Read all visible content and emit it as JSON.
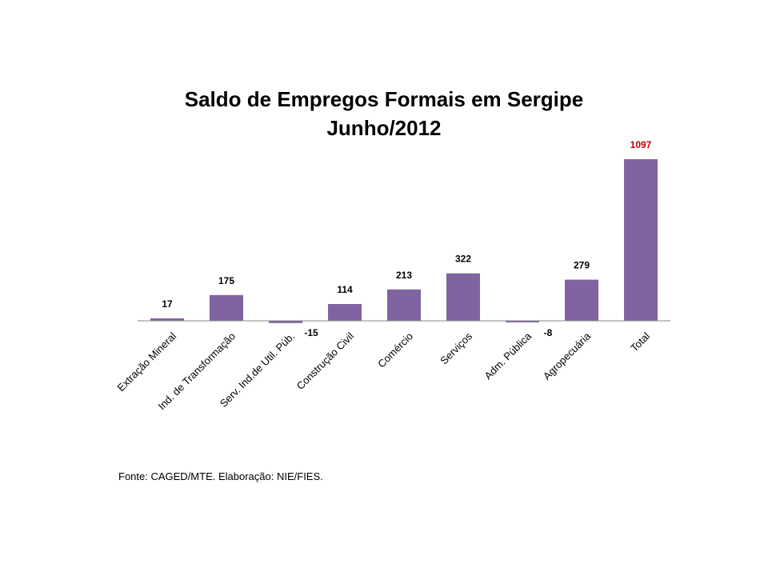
{
  "chart_data": {
    "type": "bar",
    "title": "Saldo de Empregos Formais em Sergipe",
    "subtitle": "Junho/2012",
    "categories": [
      "Extração Mineral",
      "Ind. de Transformação",
      "Serv. Ind.de Util. Púb.",
      "Construção Civil",
      "Comércio",
      "Serviços",
      "Adm. Pública",
      "Agropecuária",
      "Total"
    ],
    "values": [
      17,
      175,
      -15,
      114,
      213,
      322,
      -8,
      279,
      1097
    ],
    "data_labels": [
      "17",
      "175",
      "-15",
      "114",
      "213",
      "322",
      "-8",
      "279",
      "1097"
    ],
    "highlight_index": 8,
    "ylim": [
      -15,
      1097
    ],
    "xlabel": "",
    "ylabel": "",
    "grid": false,
    "legend": "none"
  },
  "colors": {
    "bar": "#8064A2",
    "label": "#000000",
    "highlight_label": "#C00000",
    "axis": "#868686"
  },
  "source": "Fonte: CAGED/MTE. Elaboração: NIE/FIES."
}
